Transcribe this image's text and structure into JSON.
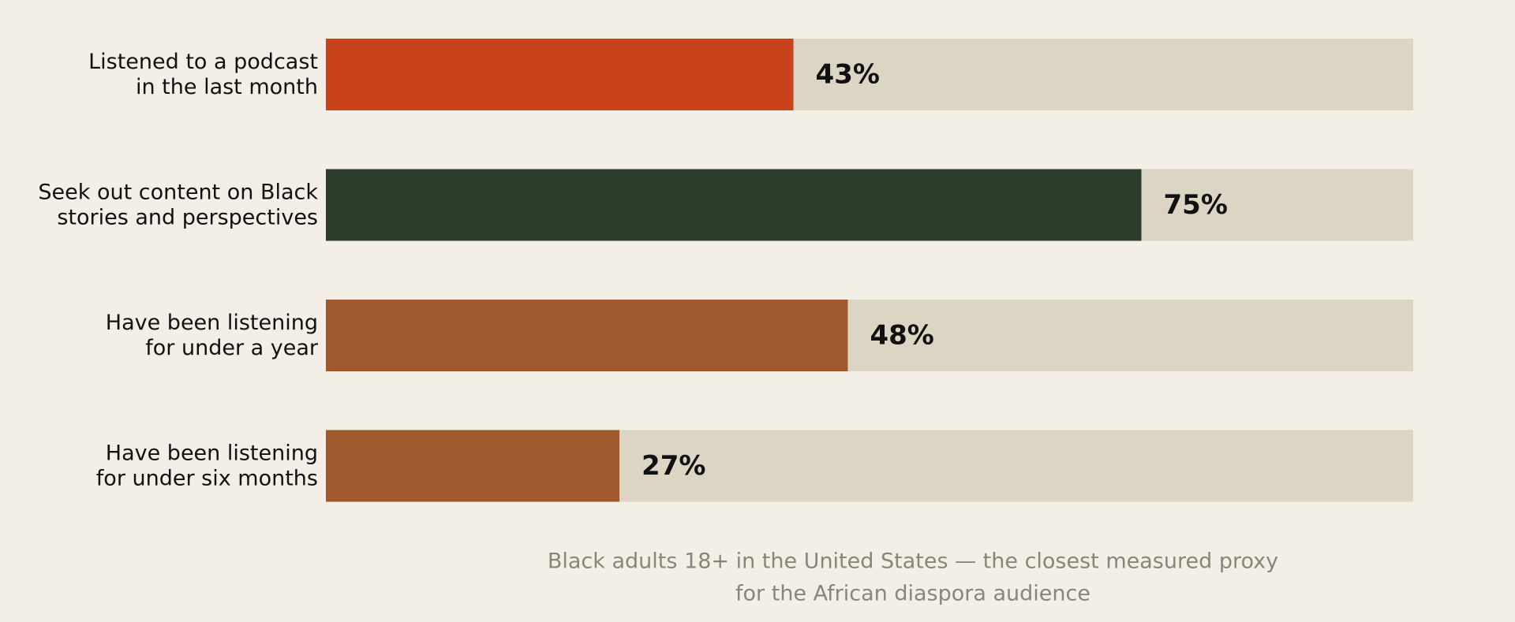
{
  "chart_data": {
    "type": "bar",
    "orientation": "horizontal",
    "categories": [
      [
        "Listened to a podcast",
        "in the last month"
      ],
      [
        "Seek out content on Black",
        "stories and perspectives"
      ],
      [
        "Have been listening",
        "for under a year"
      ],
      [
        "Have been listening",
        "for under six months"
      ]
    ],
    "values": [
      43,
      75,
      48,
      27
    ],
    "value_labels": [
      "43%",
      "75%",
      "48%",
      "27%"
    ],
    "xlim": [
      0,
      100
    ],
    "unit": "%",
    "bar_colors": [
      "#c8421b",
      "#2b3d2a",
      "#9f592c",
      "#9f592c"
    ],
    "track_color": "#ddd5c4",
    "caption": [
      "Black adults 18+ in the United States — the closest measured proxy",
      "for the African diaspora audience"
    ],
    "grid": false,
    "legend": "none"
  }
}
